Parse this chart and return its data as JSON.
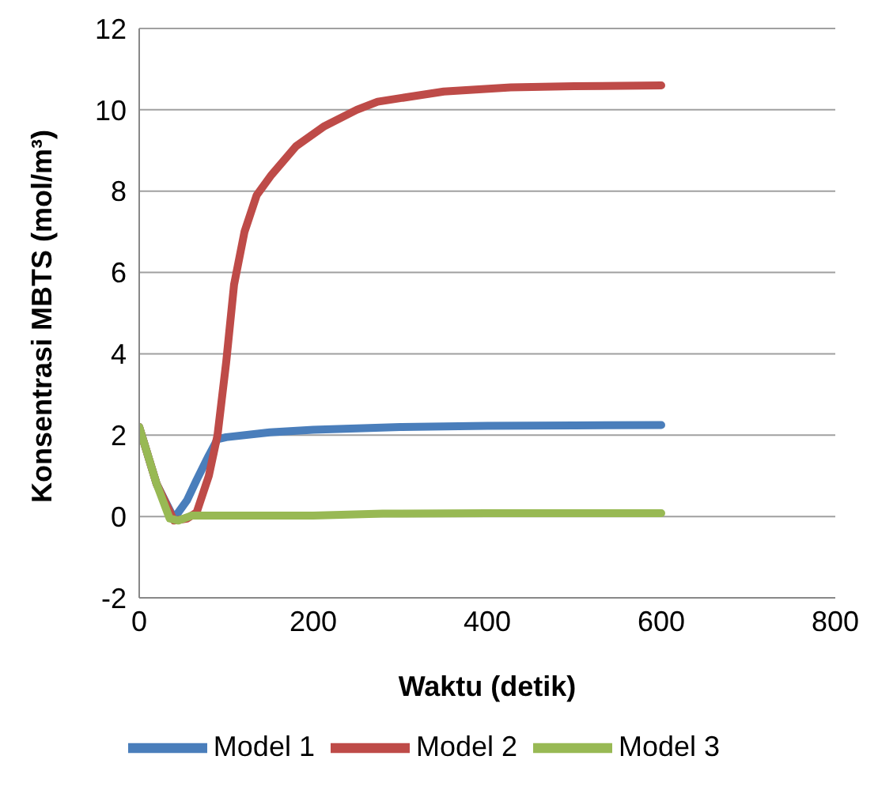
{
  "chart_data": {
    "type": "line",
    "xlabel": "Waktu (detik)",
    "ylabel": "Konsentrasi MBTS (mol/m³)",
    "xlim": [
      0,
      800
    ],
    "xticks": [
      0,
      200,
      400,
      600,
      800
    ],
    "ylim": [
      -2,
      12
    ],
    "yticks": [
      -2,
      0,
      2,
      4,
      6,
      8,
      10,
      12
    ],
    "grid": "y",
    "legend": "bottom",
    "marker": "none",
    "line_style": "solid",
    "series": [
      {
        "name": "Model 1",
        "color": "#4a7ebb",
        "x": [
          0,
          20,
          40,
          55,
          66,
          80,
          90,
          100,
          150,
          200,
          300,
          400,
          500,
          600
        ],
        "values": [
          2.2,
          0.8,
          -0.05,
          0.4,
          0.9,
          1.5,
          1.9,
          1.95,
          2.07,
          2.13,
          2.2,
          2.23,
          2.24,
          2.25
        ]
      },
      {
        "name": "Model 2",
        "color": "#be4b48",
        "x": [
          0,
          20,
          40,
          55,
          66,
          80,
          90,
          100,
          109,
          121,
          135,
          152,
          180,
          213,
          250,
          274,
          350,
          427,
          500,
          600
        ],
        "values": [
          2.2,
          0.8,
          -0.1,
          -0.05,
          0.1,
          1.0,
          2.0,
          3.8,
          5.7,
          7.0,
          7.9,
          8.4,
          9.1,
          9.6,
          10.0,
          10.2,
          10.45,
          10.55,
          10.58,
          10.6
        ]
      },
      {
        "name": "Model 3",
        "color": "#98b954",
        "x": [
          0,
          20,
          35,
          45,
          60,
          100,
          200,
          280,
          400,
          600
        ],
        "values": [
          2.2,
          0.8,
          -0.05,
          -0.1,
          0.02,
          0.02,
          0.02,
          0.07,
          0.08,
          0.08
        ]
      }
    ]
  }
}
